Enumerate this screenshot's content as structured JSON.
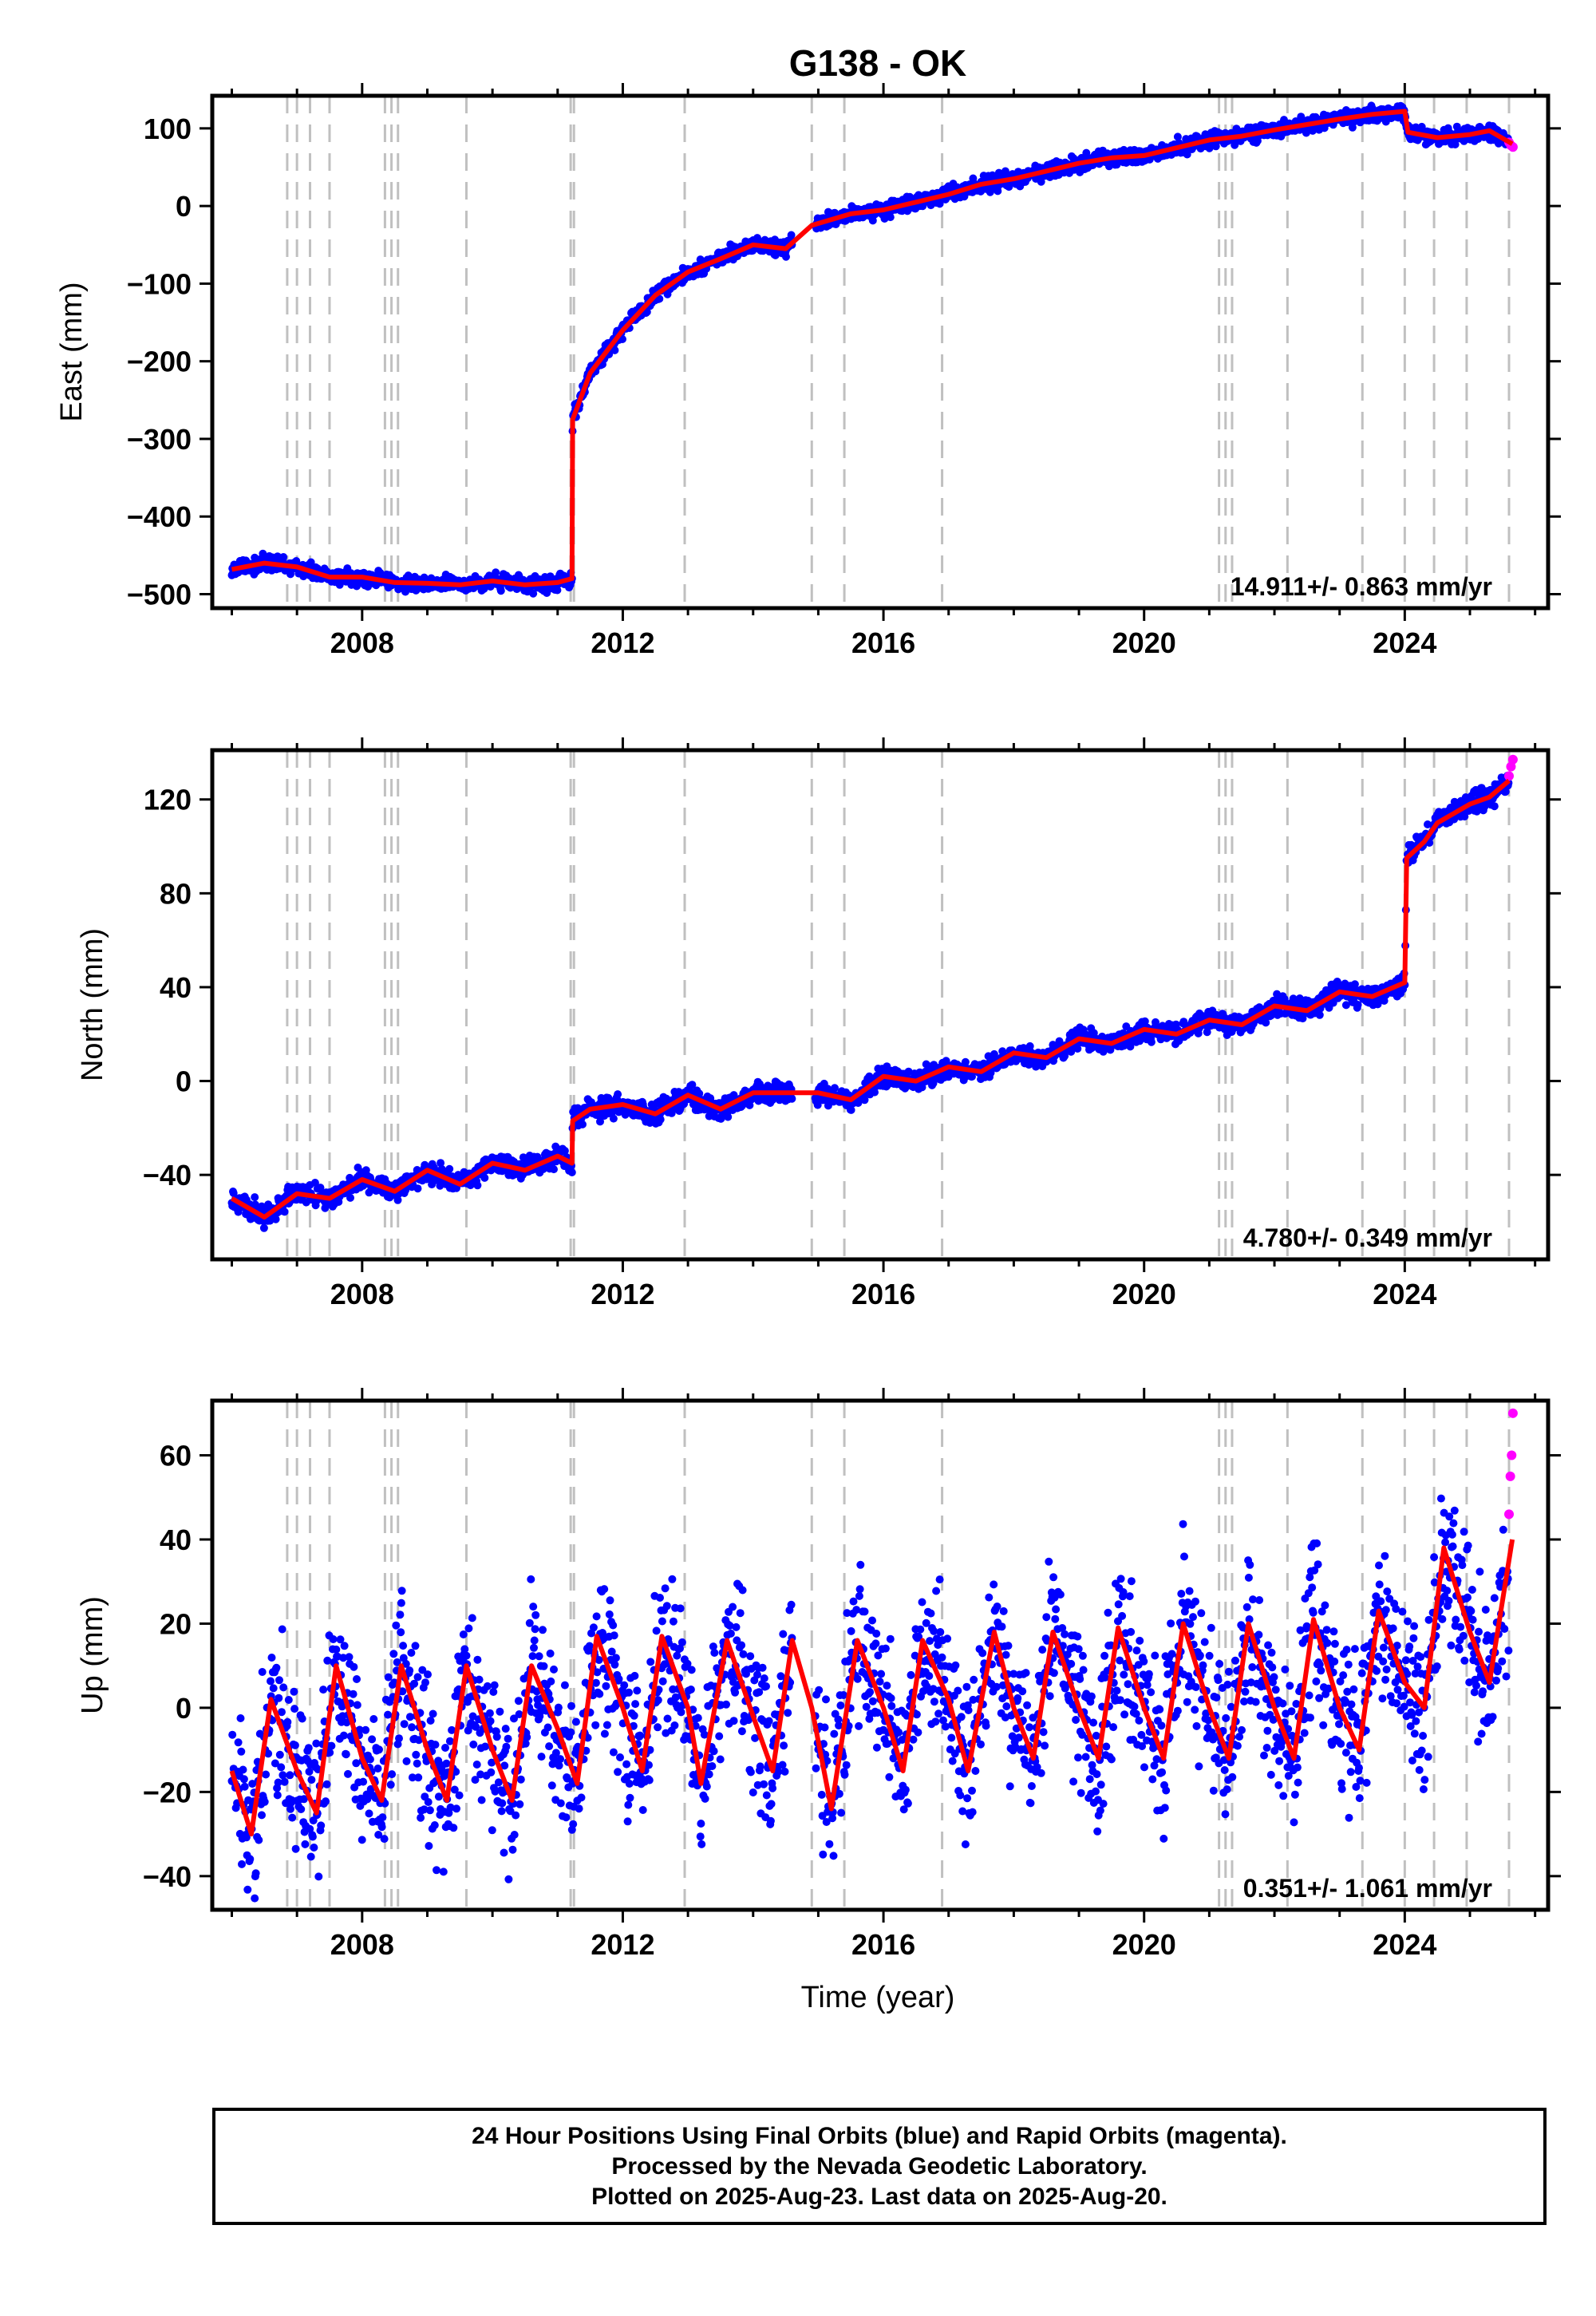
{
  "title": "G138 - OK",
  "x_axis_label": "Time (year)",
  "footer": {
    "line1": "24 Hour Positions Using Final Orbits (blue) and Rapid Orbits (magenta).",
    "line2": "Processed by the Nevada Geodetic Laboratory.",
    "line3": "Plotted on 2025-Aug-23. Last data on 2025-Aug-20."
  },
  "colors": {
    "final": "#0000ff",
    "rapid": "#ff00ff",
    "model": "#ff0000",
    "events": "#c0c0c0"
  },
  "chart_data": [
    {
      "type": "scatter",
      "name": "east",
      "ylabel": "East (mm)",
      "xlim": [
        2005.7,
        2026.2
      ],
      "ylim": [
        -518,
        142
      ],
      "x_ticks": [
        2008,
        2012,
        2016,
        2020,
        2024
      ],
      "y_ticks": [
        100,
        0,
        -100,
        -200,
        -300,
        -400,
        -500
      ],
      "rate": "14.911+/- 0.863 mm/yr",
      "event_lines": [
        2006.85,
        2007.0,
        2007.2,
        2007.5,
        2008.35,
        2008.45,
        2008.55,
        2009.6,
        2011.2,
        2011.25,
        2012.95,
        2014.9,
        2015.4,
        2016.9,
        2021.15,
        2021.25,
        2021.35,
        2022.2,
        2023.35,
        2024.0,
        2024.45,
        2024.95,
        2025.6
      ],
      "model": [
        [
          2006.0,
          -468
        ],
        [
          2006.5,
          -460
        ],
        [
          2007.0,
          -465
        ],
        [
          2007.5,
          -478
        ],
        [
          2008.0,
          -478
        ],
        [
          2008.5,
          -485
        ],
        [
          2009.0,
          -486
        ],
        [
          2009.5,
          -488
        ],
        [
          2010.0,
          -483
        ],
        [
          2010.5,
          -488
        ],
        [
          2011.0,
          -485
        ],
        [
          2011.22,
          -480
        ],
        [
          2011.23,
          -275
        ],
        [
          2011.5,
          -215
        ],
        [
          2012.0,
          -160
        ],
        [
          2012.5,
          -115
        ],
        [
          2013.0,
          -85
        ],
        [
          2013.5,
          -68
        ],
        [
          2014.0,
          -50
        ],
        [
          2014.5,
          -55
        ],
        [
          2014.9,
          -25
        ],
        [
          2015.5,
          -10
        ],
        [
          2016.0,
          -5
        ],
        [
          2016.5,
          5
        ],
        [
          2017.0,
          15
        ],
        [
          2017.5,
          28
        ],
        [
          2018.0,
          35
        ],
        [
          2018.5,
          45
        ],
        [
          2019.0,
          55
        ],
        [
          2019.5,
          62
        ],
        [
          2020.0,
          65
        ],
        [
          2020.5,
          75
        ],
        [
          2021.0,
          85
        ],
        [
          2021.5,
          90
        ],
        [
          2022.0,
          98
        ],
        [
          2022.5,
          105
        ],
        [
          2023.0,
          112
        ],
        [
          2023.5,
          118
        ],
        [
          2024.0,
          122
        ],
        [
          2024.05,
          95
        ],
        [
          2024.5,
          88
        ],
        [
          2025.0,
          92
        ],
        [
          2025.3,
          97
        ],
        [
          2025.65,
          80
        ]
      ],
      "rapid": [
        [
          2025.6,
          82
        ],
        [
          2025.63,
          78
        ],
        [
          2025.66,
          76
        ]
      ]
    },
    {
      "type": "scatter",
      "name": "north",
      "ylabel": "North (mm)",
      "xlim": [
        2005.7,
        2026.2
      ],
      "ylim": [
        -76,
        141
      ],
      "x_ticks": [
        2008,
        2012,
        2016,
        2020,
        2024
      ],
      "y_ticks": [
        120,
        80,
        40,
        0,
        -40
      ],
      "rate": "4.780+/- 0.349 mm/yr",
      "event_lines": [
        2006.85,
        2007.0,
        2007.2,
        2007.5,
        2008.35,
        2008.45,
        2008.55,
        2009.6,
        2011.2,
        2011.25,
        2012.95,
        2014.9,
        2015.4,
        2016.9,
        2021.15,
        2021.25,
        2021.35,
        2022.2,
        2023.35,
        2024.0,
        2024.45,
        2024.95,
        2025.6
      ],
      "model": [
        [
          2006.0,
          -50
        ],
        [
          2006.5,
          -58
        ],
        [
          2007.0,
          -48
        ],
        [
          2007.5,
          -50
        ],
        [
          2008.0,
          -42
        ],
        [
          2008.5,
          -47
        ],
        [
          2009.0,
          -38
        ],
        [
          2009.5,
          -44
        ],
        [
          2010.0,
          -35
        ],
        [
          2010.5,
          -38
        ],
        [
          2011.0,
          -32
        ],
        [
          2011.22,
          -35
        ],
        [
          2011.23,
          -17
        ],
        [
          2011.5,
          -12
        ],
        [
          2012.0,
          -10
        ],
        [
          2012.5,
          -14
        ],
        [
          2013.0,
          -6
        ],
        [
          2013.5,
          -12
        ],
        [
          2014.0,
          -5
        ],
        [
          2014.5,
          -5
        ],
        [
          2015.0,
          -5
        ],
        [
          2015.5,
          -8
        ],
        [
          2016.0,
          2
        ],
        [
          2016.5,
          0
        ],
        [
          2017.0,
          6
        ],
        [
          2017.5,
          4
        ],
        [
          2018.0,
          12
        ],
        [
          2018.5,
          10
        ],
        [
          2019.0,
          18
        ],
        [
          2019.5,
          16
        ],
        [
          2020.0,
          22
        ],
        [
          2020.5,
          20
        ],
        [
          2021.0,
          26
        ],
        [
          2021.5,
          24
        ],
        [
          2022.0,
          32
        ],
        [
          2022.5,
          30
        ],
        [
          2023.0,
          38
        ],
        [
          2023.5,
          36
        ],
        [
          2024.0,
          42
        ],
        [
          2024.03,
          95
        ],
        [
          2024.3,
          102
        ],
        [
          2024.5,
          110
        ],
        [
          2025.0,
          118
        ],
        [
          2025.3,
          121
        ],
        [
          2025.6,
          128
        ]
      ],
      "rapid": [
        [
          2025.6,
          130
        ],
        [
          2025.63,
          134
        ],
        [
          2025.66,
          137
        ]
      ]
    },
    {
      "type": "scatter",
      "name": "up",
      "ylabel": "Up (mm)",
      "xlim": [
        2005.7,
        2026.2
      ],
      "ylim": [
        -48,
        73
      ],
      "x_ticks": [
        2008,
        2012,
        2016,
        2020,
        2024
      ],
      "y_ticks": [
        60,
        40,
        20,
        0,
        -20,
        -40
      ],
      "rate": "0.351+/- 1.061 mm/yr",
      "event_lines": [
        2006.85,
        2007.0,
        2007.2,
        2007.5,
        2008.35,
        2008.45,
        2008.55,
        2009.6,
        2011.2,
        2011.25,
        2012.95,
        2014.9,
        2015.4,
        2016.9,
        2021.15,
        2021.25,
        2021.35,
        2022.2,
        2023.35,
        2024.0,
        2024.45,
        2024.95,
        2025.6
      ],
      "model": [
        [
          2006.0,
          -15
        ],
        [
          2006.3,
          -30
        ],
        [
          2006.6,
          2
        ],
        [
          2007.0,
          -15
        ],
        [
          2007.3,
          -25
        ],
        [
          2007.6,
          10
        ],
        [
          2008.0,
          -12
        ],
        [
          2008.3,
          -22
        ],
        [
          2008.6,
          10
        ],
        [
          2009.0,
          -10
        ],
        [
          2009.3,
          -22
        ],
        [
          2009.6,
          10
        ],
        [
          2010.0,
          -10
        ],
        [
          2010.3,
          -22
        ],
        [
          2010.6,
          10
        ],
        [
          2011.0,
          -5
        ],
        [
          2011.3,
          -18
        ],
        [
          2011.6,
          17
        ],
        [
          2012.0,
          0
        ],
        [
          2012.3,
          -15
        ],
        [
          2012.6,
          17
        ],
        [
          2013.0,
          0
        ],
        [
          2013.2,
          -18
        ],
        [
          2013.6,
          16
        ],
        [
          2014.0,
          -2
        ],
        [
          2014.3,
          -15
        ],
        [
          2014.6,
          16
        ],
        [
          2014.9,
          0
        ],
        [
          2015.2,
          -24
        ],
        [
          2015.6,
          16
        ],
        [
          2016.0,
          0
        ],
        [
          2016.3,
          -15
        ],
        [
          2016.6,
          16
        ],
        [
          2017.0,
          2
        ],
        [
          2017.3,
          -15
        ],
        [
          2017.7,
          18
        ],
        [
          2018.0,
          0
        ],
        [
          2018.3,
          -12
        ],
        [
          2018.6,
          18
        ],
        [
          2019.0,
          0
        ],
        [
          2019.3,
          -12
        ],
        [
          2019.6,
          19
        ],
        [
          2020.0,
          0
        ],
        [
          2020.3,
          -12
        ],
        [
          2020.6,
          20
        ],
        [
          2021.0,
          0
        ],
        [
          2021.3,
          -12
        ],
        [
          2021.6,
          20
        ],
        [
          2022.0,
          0
        ],
        [
          2022.3,
          -12
        ],
        [
          2022.6,
          21
        ],
        [
          2023.0,
          0
        ],
        [
          2023.3,
          -10
        ],
        [
          2023.6,
          23
        ],
        [
          2024.0,
          6
        ],
        [
          2024.3,
          0
        ],
        [
          2024.6,
          38
        ],
        [
          2025.0,
          18
        ],
        [
          2025.3,
          6
        ],
        [
          2025.65,
          40
        ]
      ],
      "rapid": [
        [
          2025.6,
          46
        ],
        [
          2025.62,
          55
        ],
        [
          2025.64,
          60
        ],
        [
          2025.66,
          70
        ]
      ]
    }
  ]
}
